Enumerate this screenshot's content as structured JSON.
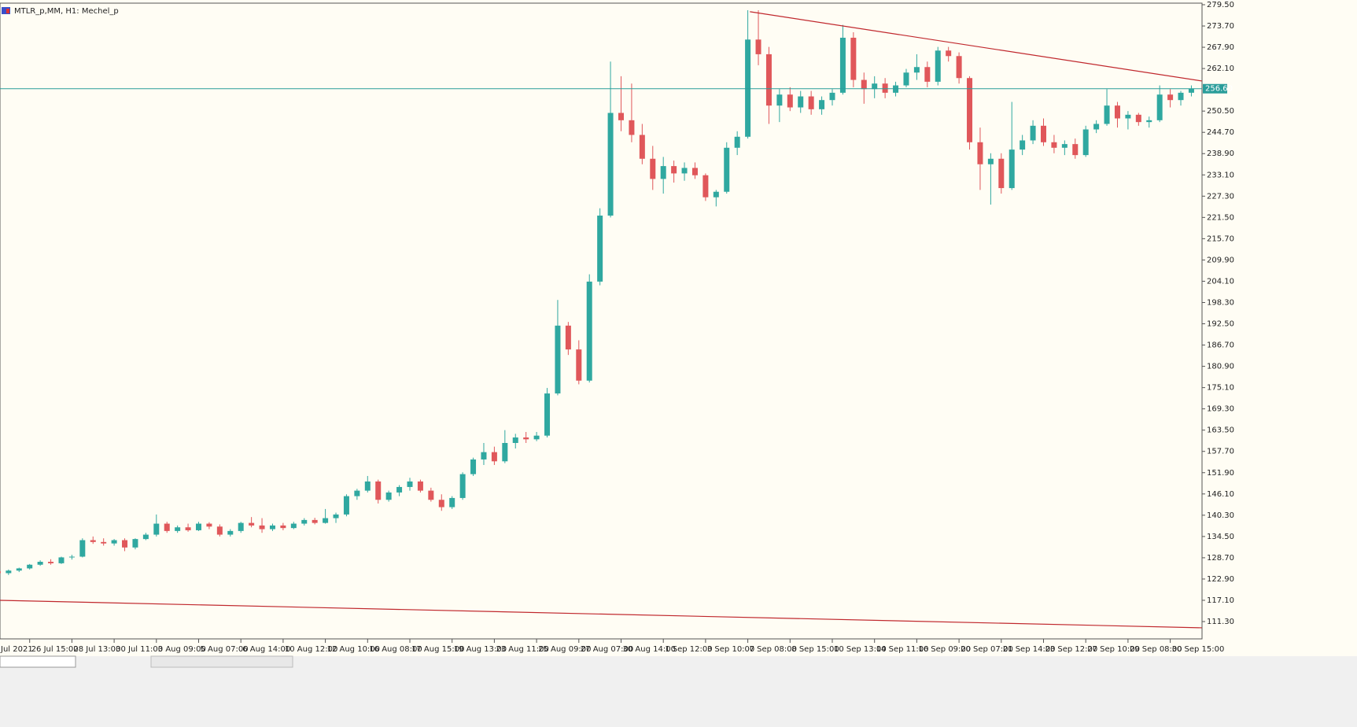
{
  "chart_data": {
    "type": "candlestick",
    "title": "MTLR_p,MM, H1:  Mechel_p",
    "categories": [
      "Jul 2021",
      null,
      null,
      null,
      "26 Jul 15:00",
      null,
      null,
      null,
      "28 Jul 13:00",
      null,
      null,
      null,
      "30 Jul 11:00",
      null,
      null,
      null,
      "3 Aug 09:00",
      null,
      null,
      null,
      "5 Aug 07:00",
      null,
      null,
      null,
      "6 Aug 14:00",
      null,
      null,
      null,
      "10 Aug 12:00",
      null,
      null,
      null,
      "12 Aug 10:00",
      null,
      null,
      null,
      "16 Aug 08:00",
      null,
      null,
      null,
      "17 Aug 15:00",
      null,
      null,
      null,
      "19 Aug 13:00",
      null,
      null,
      null,
      "23 Aug 11:00",
      null,
      null,
      null,
      "25 Aug 09:00",
      null,
      null,
      null,
      "27 Aug 07:00",
      null,
      null,
      null,
      "30 Aug 14:00",
      null,
      null,
      null,
      "1 Sep 12:00",
      null,
      null,
      null,
      "3 Sep 10:00",
      null,
      null,
      null,
      "7 Sep 08:00",
      null,
      null,
      null,
      "8 Sep 15:00",
      null,
      null,
      null,
      "10 Sep 13:00",
      null,
      null,
      null,
      "14 Sep 11:00",
      null,
      null,
      null,
      "16 Sep 09:00",
      null,
      null,
      null,
      "20 Sep 07:00",
      null,
      null,
      null,
      "21 Sep 14:00",
      null,
      null,
      null,
      "23 Sep 12:00",
      null,
      null,
      null,
      "27 Sep 10:00",
      null,
      null,
      null,
      "29 Sep 08:00",
      null,
      null,
      null,
      "30 Sep 15:00",
      null,
      null
    ],
    "open": [
      125.5,
      125,
      124.5,
      125.2,
      125.8,
      126.8,
      127.6,
      127.2,
      128.8,
      129,
      133.5,
      133,
      132.6,
      133.5,
      131.5,
      133.8,
      135,
      138,
      136,
      137,
      136.2,
      138,
      137.2,
      135,
      136,
      138.2,
      137.5,
      136.5,
      137.5,
      136.8,
      138,
      139,
      138.2,
      139.5,
      140.5,
      145.5,
      147,
      149.5,
      144.5,
      146.5,
      148,
      149.5,
      147,
      144.5,
      142.5,
      145,
      151.5,
      155.5,
      157.5,
      155,
      160,
      161.5,
      161,
      162,
      173.5,
      192,
      185.5,
      177,
      204,
      222,
      250,
      248,
      244,
      237.5,
      232,
      235.5,
      233.5,
      235,
      233,
      227,
      228.5,
      240.5,
      243.5,
      270,
      266,
      252,
      255,
      251.5,
      254.5,
      251,
      253.5,
      255.5,
      270.5,
      259,
      256.5,
      258,
      255.5,
      257.5,
      261,
      262.5,
      258.5,
      267,
      265.5,
      259.5,
      242,
      236,
      237.5,
      229.5,
      240,
      242.5,
      246.5,
      242,
      240.5,
      241.5,
      238.5,
      245.5,
      247,
      252,
      248.5,
      249.5,
      247.5,
      248,
      255,
      253.5,
      255.5
    ],
    "high": [
      126,
      125.8,
      125.5,
      126,
      127,
      128,
      128.3,
      129,
      129.5,
      134,
      134.5,
      134,
      133.8,
      134,
      134,
      135.5,
      140.5,
      138.5,
      137.5,
      138,
      138.5,
      138.4,
      137.8,
      136.5,
      138.5,
      139.8,
      139.5,
      138,
      138.2,
      138.5,
      139.5,
      139.6,
      142,
      141,
      146,
      147.5,
      151,
      150,
      147,
      148.5,
      150.5,
      150,
      147.8,
      146,
      145.5,
      152,
      156,
      160,
      159,
      163.5,
      162.5,
      163,
      163,
      175,
      199,
      193,
      188,
      206,
      224,
      264,
      260,
      258,
      247,
      241,
      238,
      237,
      236.5,
      236.5,
      233.5,
      229,
      242,
      245,
      278,
      278,
      268,
      256.5,
      257,
      256,
      256,
      254.5,
      256.5,
      274,
      272,
      261,
      260,
      259.5,
      258.5,
      262,
      266,
      264,
      268,
      268,
      266.5,
      260,
      246,
      239,
      239,
      253,
      244,
      248,
      248.5,
      244,
      242.5,
      243,
      246.5,
      248,
      256.5,
      253,
      250.5,
      250,
      249,
      257.5,
      256.5,
      256,
      257.5
    ],
    "low": [
      124.5,
      124,
      124,
      124.8,
      125.5,
      126.5,
      126.8,
      127,
      128.2,
      128.8,
      132.5,
      132,
      132,
      130.5,
      131,
      133.5,
      134.5,
      135.5,
      135.5,
      135.8,
      136,
      136.5,
      134.5,
      134.5,
      135.5,
      137,
      135.5,
      136,
      136.2,
      136.5,
      137.5,
      137.8,
      138,
      138.2,
      140,
      144.5,
      146.5,
      143.5,
      144,
      145.5,
      147,
      146.5,
      144,
      141.5,
      142,
      144.5,
      151,
      154,
      154,
      154.5,
      158.5,
      160,
      160.5,
      161.5,
      173,
      184,
      176,
      176.5,
      203,
      221.5,
      245,
      242,
      236,
      229,
      228,
      231,
      231.5,
      232,
      226,
      224.5,
      228,
      238.5,
      243,
      263,
      247,
      247.5,
      250.5,
      250,
      249.5,
      249.5,
      252,
      255,
      257,
      252.5,
      254,
      254,
      254.5,
      257,
      259,
      257,
      257.5,
      264,
      258,
      240,
      229,
      225,
      228,
      229,
      238.5,
      241.5,
      241,
      239,
      238.5,
      237.5,
      238,
      244.5,
      246.5,
      246,
      245.5,
      246.5,
      246,
      247.5,
      251.5,
      252,
      254.5
    ],
    "close": [
      125,
      124.5,
      125.2,
      125.8,
      126.8,
      127.6,
      127.2,
      128.8,
      129,
      133.5,
      133,
      132.6,
      133.5,
      131.5,
      133.8,
      135,
      138,
      136,
      137,
      136.2,
      138,
      137.2,
      135,
      136,
      138.2,
      137.5,
      136.5,
      137.5,
      136.8,
      138,
      139,
      138.2,
      139.5,
      140.5,
      145.5,
      147,
      149.5,
      144.5,
      146.5,
      148,
      149.5,
      147,
      144.5,
      142.5,
      145,
      151.5,
      155.5,
      157.5,
      155,
      160,
      161.5,
      161,
      162,
      173.5,
      192,
      185.5,
      177,
      204,
      222,
      250,
      248,
      244,
      237.5,
      232,
      235.5,
      233.5,
      235,
      233,
      227,
      228.5,
      240.5,
      243.5,
      270,
      266,
      252,
      255,
      251.5,
      254.5,
      251,
      253.5,
      255.5,
      270.5,
      259,
      256.5,
      258,
      255.5,
      257.5,
      261,
      262.5,
      258.5,
      267,
      265.5,
      259.5,
      242,
      236,
      237.5,
      229.5,
      240,
      242.5,
      246.5,
      242,
      240.5,
      241.5,
      238.5,
      245.5,
      247,
      252,
      248.5,
      249.5,
      247.5,
      248,
      255,
      253.5,
      255.5,
      256.6
    ],
    "up_color": "#2fa8a0",
    "down_color": "#e0575a",
    "ylim": [
      106.58,
      279.93
    ],
    "yticks": [
      {
        "value": 279.5,
        "label": "279.50"
      },
      {
        "value": 273.7,
        "label": "273.70"
      },
      {
        "value": 267.9,
        "label": "267.90"
      },
      {
        "value": 262.1,
        "label": "262.10"
      },
      {
        "value": 250.5,
        "label": "250.50"
      },
      {
        "value": 244.7,
        "label": "244.70"
      },
      {
        "value": 238.9,
        "label": "238.90"
      },
      {
        "value": 233.1,
        "label": "233.10"
      },
      {
        "value": 227.3,
        "label": "227.30"
      },
      {
        "value": 221.5,
        "label": "221.50"
      },
      {
        "value": 215.7,
        "label": "215.70"
      },
      {
        "value": 209.9,
        "label": "209.90"
      },
      {
        "value": 204.1,
        "label": "204.10"
      },
      {
        "value": 198.3,
        "label": "198.30"
      },
      {
        "value": 192.5,
        "label": "192.50"
      },
      {
        "value": 186.7,
        "label": "186.70"
      },
      {
        "value": 180.9,
        "label": "180.90"
      },
      {
        "value": 175.1,
        "label": "175.10"
      },
      {
        "value": 169.3,
        "label": "169.30"
      },
      {
        "value": 163.5,
        "label": "163.50"
      },
      {
        "value": 157.7,
        "label": "157.70"
      },
      {
        "value": 151.9,
        "label": "151.90"
      },
      {
        "value": 146.1,
        "label": "146.10"
      },
      {
        "value": 140.3,
        "label": "140.30"
      },
      {
        "value": 134.5,
        "label": "134.50"
      },
      {
        "value": 128.7,
        "label": "128.70"
      },
      {
        "value": 122.9,
        "label": "122.90"
      },
      {
        "value": 117.1,
        "label": "117.10"
      },
      {
        "value": 111.3,
        "label": "111.30"
      }
    ],
    "price_line": {
      "value": 256.6,
      "label": "256.60",
      "color": "#2a9d9a"
    },
    "trendlines": [
      {
        "color": "#c0282d",
        "x": [
          72.2,
          115
        ],
        "y": [
          277.6,
          258.7
        ]
      },
      {
        "color": "#c0282d",
        "x": [
          1.2,
          115
        ],
        "y": [
          117.1,
          109.6
        ]
      }
    ]
  }
}
